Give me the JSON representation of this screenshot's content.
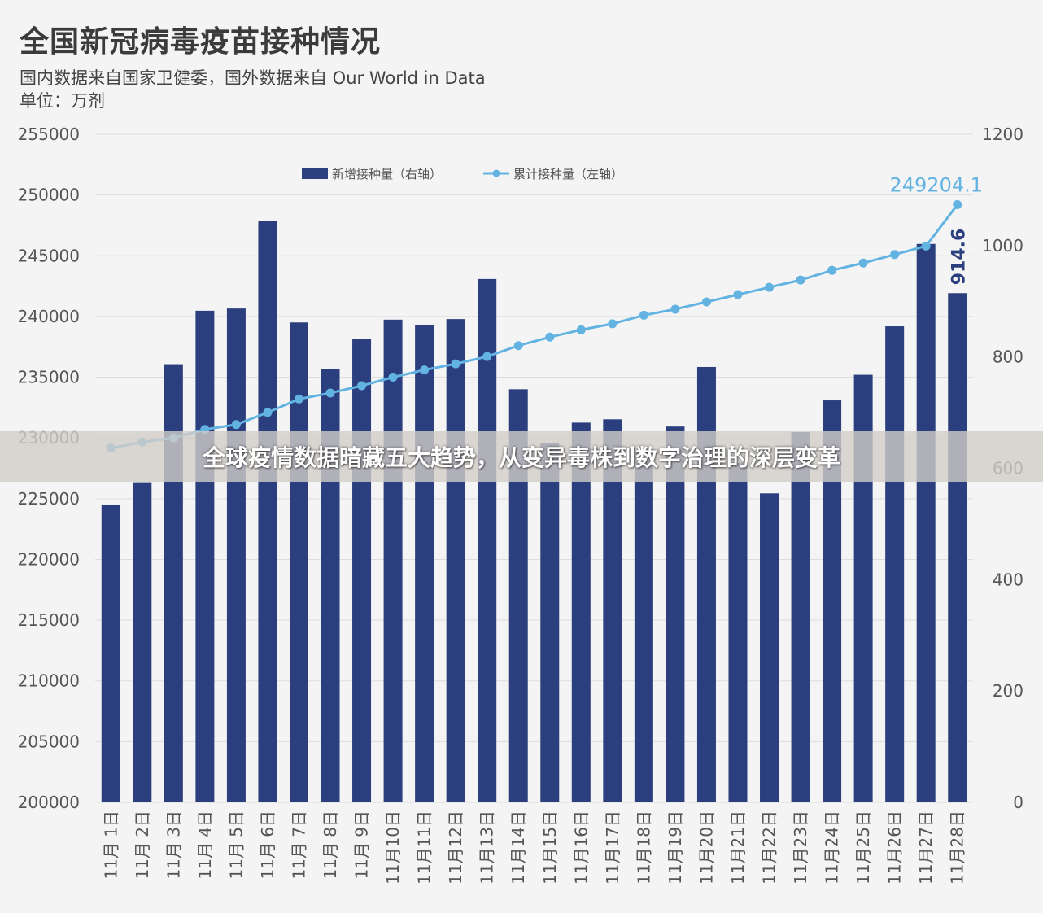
{
  "title": "全国新冠病毒疫苗接种情况",
  "subtitle_lines": [
    "国内数据来自国家卫健委，国外数据来自 Our World in Data",
    "单位：万剂"
  ],
  "banner": "全球疫情数据暗藏五大趋势，从变异毒株到数字治理的深层变革",
  "colors": {
    "bar": "#2b3f7e",
    "line": "#62b3e2",
    "text": "#555555",
    "grid": "#dddddd"
  },
  "chart_data": {
    "type": "bar",
    "categories": [
      "11月 1日",
      "11月 2日",
      "11月 3日",
      "11月 4日",
      "11月 5日",
      "11月 6日",
      "11月 7日",
      "11月 8日",
      "11月 9日",
      "11月10日",
      "11月11日",
      "11月12日",
      "11月13日",
      "11月14日",
      "11月15日",
      "11月16日",
      "11月17日",
      "11月18日",
      "11月19日",
      "11月20日",
      "11月21日",
      "11月22日",
      "11月23日",
      "11月24日",
      "11月25日",
      "11月26日",
      "11月27日",
      "11月28日"
    ],
    "left_axis": {
      "min": 200000,
      "max": 255000,
      "ticks": [
        200000,
        205000,
        210000,
        215000,
        220000,
        225000,
        230000,
        235000,
        240000,
        245000,
        250000,
        255000
      ]
    },
    "right_axis": {
      "min": 0,
      "max": 1200,
      "ticks": [
        0,
        200,
        400,
        600,
        800,
        1000,
        1200
      ]
    },
    "legend_position": "top-center",
    "series": [
      {
        "name": "新增接种量（右轴）",
        "type": "bar",
        "axis": "right",
        "values": [
          535,
          575,
          787,
          883,
          887,
          1045,
          862,
          778,
          832,
          867,
          857,
          868,
          940,
          742,
          645,
          682,
          688,
          630,
          675,
          782,
          610,
          555,
          665,
          722,
          768,
          855,
          1003,
          914.6
        ]
      },
      {
        "name": "累计接种量（左轴）",
        "type": "line",
        "axis": "left",
        "values": [
          229160,
          229660,
          230000,
          230700,
          231100,
          232100,
          233200,
          233700,
          234300,
          235000,
          235600,
          236100,
          236700,
          237600,
          238300,
          238900,
          239400,
          240100,
          240600,
          241200,
          241800,
          242400,
          243000,
          243800,
          244400,
          245100,
          245800,
          249204.1
        ]
      }
    ],
    "data_labels": {
      "last_bar": "914.6",
      "last_point": "249204.1"
    }
  }
}
